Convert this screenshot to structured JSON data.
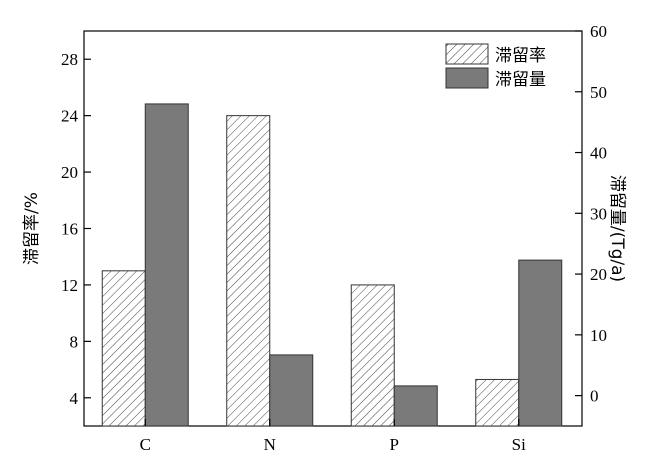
{
  "chart_data": {
    "type": "bar",
    "categories": [
      "C",
      "N",
      "P",
      "Si"
    ],
    "series": [
      {
        "name": "滞留率",
        "axis": "left",
        "pattern": "hatched",
        "values": [
          13.0,
          24.0,
          12.0,
          5.3
        ]
      },
      {
        "name": "滞留量",
        "axis": "right",
        "pattern": "solid",
        "color": "#7a7a7a",
        "values": [
          48.0,
          6.7,
          1.6,
          22.3
        ]
      }
    ],
    "ylabel_left": "滞留率/%",
    "ylabel_right": "滞留量/(Tg/a)",
    "ylim_left": [
      2,
      30
    ],
    "yticks_left": [
      4,
      8,
      12,
      16,
      20,
      24,
      28
    ],
    "ylim_right": [
      -5,
      60
    ],
    "yticks_right": [
      0,
      10,
      20,
      30,
      40,
      50,
      60
    ],
    "legend": "top-right",
    "grid": false
  }
}
